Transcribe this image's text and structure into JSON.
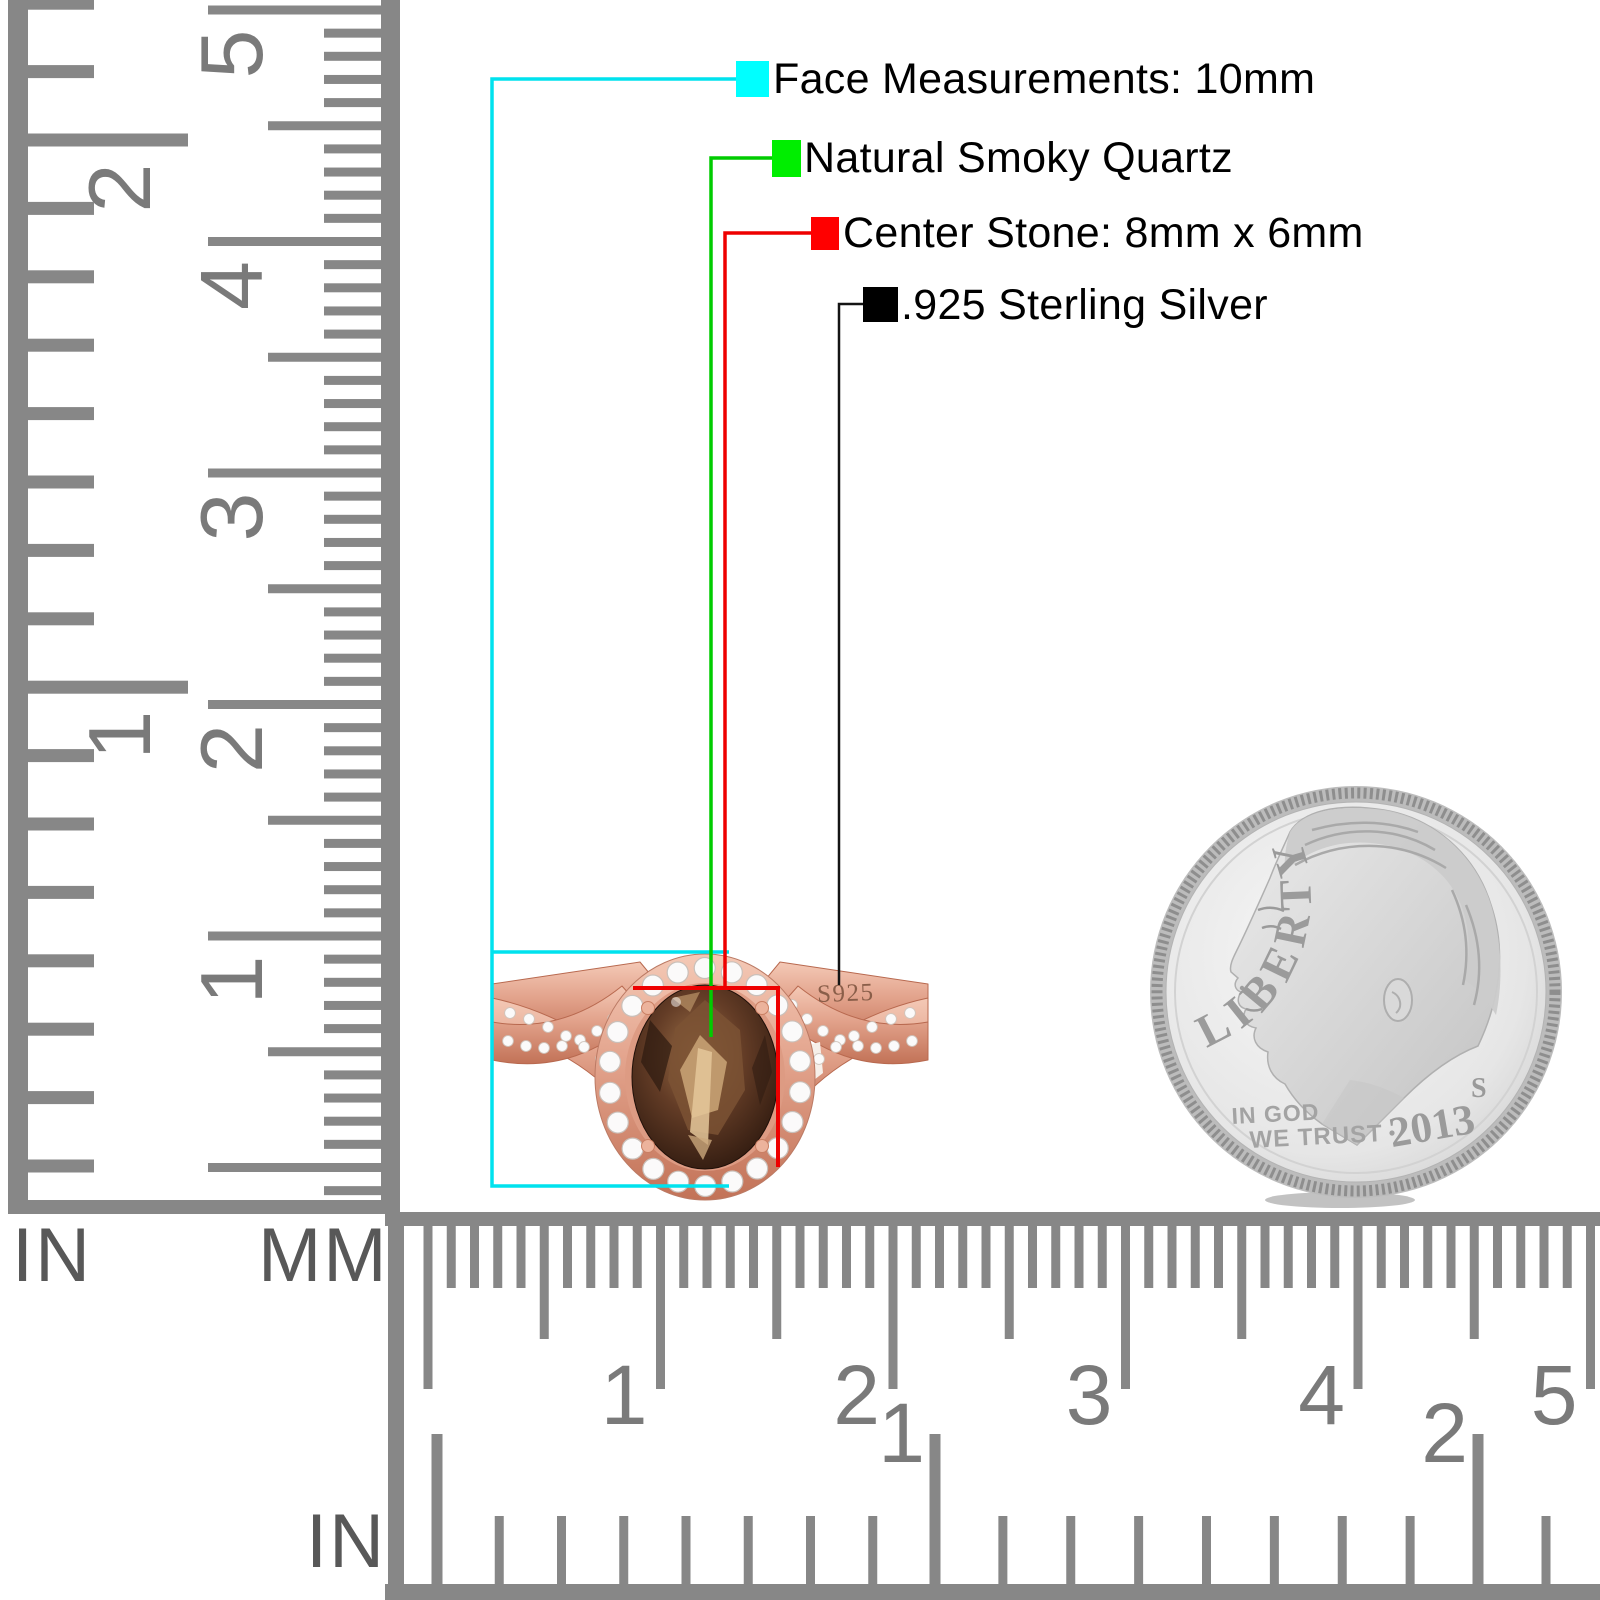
{
  "annotations": {
    "items": [
      {
        "label": "Face Measurements: 10mm",
        "swatch": "#00ffff",
        "line": "#00e2ee"
      },
      {
        "label": "Natural Smoky Quartz",
        "swatch": "#00ee00",
        "line": "#00cc00"
      },
      {
        "label": "Center Stone: 8mm x 6mm",
        "swatch": "#ff0000",
        "line": "#ee0000"
      },
      {
        "label": ".925 Sterling Silver",
        "swatch": "#000000",
        "line": "#141414"
      }
    ]
  },
  "rulers": {
    "left_inch": {
      "label": "IN",
      "numbers": [
        "2",
        "1"
      ]
    },
    "left_mm": {
      "label": "MM",
      "numbers": [
        "5",
        "4",
        "3",
        "2",
        "1"
      ]
    },
    "bottom_mm": {
      "numbers": [
        "1",
        "2",
        "3",
        "4",
        "5"
      ]
    },
    "bottom_inch": {
      "label": "IN",
      "numbers": [
        "1",
        "2"
      ]
    },
    "tick_color": "#878787",
    "number_color": "#7a7a7a"
  },
  "ring": {
    "stamp": "S925",
    "metal_color": "#e2a28b",
    "stone_color": "#3a2114",
    "diamond_color": "#fbfafa"
  },
  "coin": {
    "legend": "LIBERTY",
    "motto1": "IN GOD",
    "motto2": "WE TRUST",
    "mint_mark": "S",
    "date": "2013",
    "text_color": "#9b9b9b"
  }
}
